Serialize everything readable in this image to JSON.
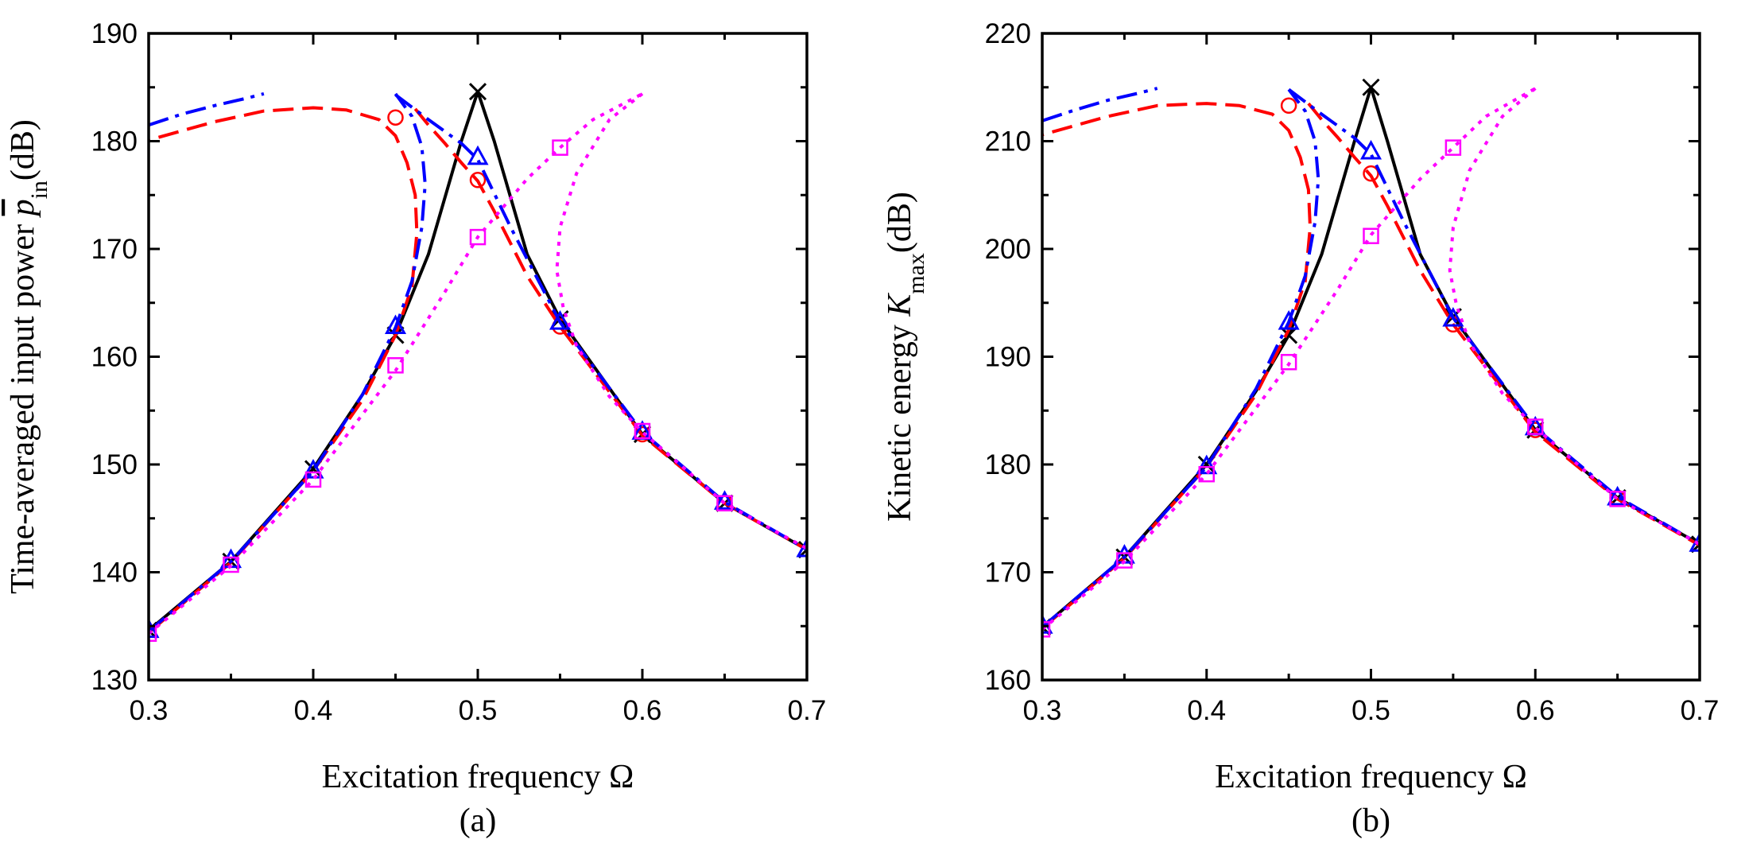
{
  "chart_data": [
    {
      "type": "line",
      "panel_label": "(a)",
      "xlabel": "Excitation frequency Ω",
      "ylabel": {
        "prefix": "Time-averaged input power ",
        "symbol": "p",
        "overline": true,
        "subscript": "in",
        "suffix": "(dB)"
      },
      "xlim": [
        0.3,
        0.7
      ],
      "ylim": [
        130,
        190
      ],
      "xticks": [
        "0.3",
        "0.4",
        "0.5",
        "0.6",
        "0.7"
      ],
      "xticks_minor": [
        0.35,
        0.45,
        0.55,
        0.65
      ],
      "yticks": [
        "130",
        "140",
        "150",
        "160",
        "170",
        "180",
        "190"
      ],
      "yticks_minor": [
        135,
        145,
        155,
        165,
        175,
        185
      ],
      "grid": false,
      "series": [
        {
          "color": "#000000",
          "dash": "solid",
          "marker": "x",
          "x": [
            0.3,
            0.35,
            0.4,
            0.43,
            0.45,
            0.47,
            0.49,
            0.5,
            0.51,
            0.53,
            0.55,
            0.6,
            0.65,
            0.7
          ],
          "y": [
            134.6,
            141.0,
            149.6,
            156.5,
            162.0,
            169.5,
            180.0,
            184.6,
            180.0,
            169.5,
            163.5,
            152.8,
            146.4,
            142.1
          ],
          "marker_x": [
            0.3,
            0.35,
            0.4,
            0.45,
            0.5,
            0.55,
            0.6,
            0.65,
            0.7
          ],
          "marker_y": [
            134.6,
            141.0,
            149.6,
            162.0,
            184.6,
            163.5,
            152.8,
            146.4,
            142.1
          ]
        },
        {
          "color": "#ff0000",
          "dash": "dashed",
          "marker": "circle",
          "x": [
            0.3,
            0.35,
            0.4,
            0.43,
            0.45,
            0.46,
            0.463,
            0.462,
            0.457,
            0.45,
            0.44,
            0.42,
            0.4,
            0.37,
            0.34,
            0.3
          ],
          "y": [
            134.4,
            140.9,
            149.4,
            156.0,
            162.0,
            166.5,
            171.5,
            175.0,
            178.0,
            180.5,
            182.0,
            182.9,
            183.1,
            182.8,
            181.8,
            180.1
          ],
          "x2": [
            0.462,
            0.47,
            0.48,
            0.49,
            0.5,
            0.51,
            0.53,
            0.55,
            0.6,
            0.65,
            0.7
          ],
          "y2": [
            183.0,
            181.5,
            179.8,
            178.0,
            176.3,
            173.5,
            167.5,
            162.8,
            152.7,
            146.4,
            142.1
          ],
          "marker_x": [
            0.45,
            0.5,
            0.55,
            0.6,
            0.65
          ],
          "marker_y": [
            182.2,
            176.4,
            162.8,
            152.8,
            146.4
          ]
        },
        {
          "color": "#0000ff",
          "dash": "dashdot",
          "marker": "triangle",
          "x": [
            0.3,
            0.35,
            0.4,
            0.43,
            0.45,
            0.46,
            0.466,
            0.468,
            0.466,
            0.46,
            0.45
          ],
          "y": [
            134.5,
            141.0,
            149.4,
            156.5,
            162.7,
            167.0,
            172.0,
            176.0,
            179.5,
            182.3,
            184.4
          ],
          "x2": [
            0.3,
            0.32,
            0.34,
            0.36,
            0.37
          ],
          "y2": [
            181.5,
            182.5,
            183.3,
            184.0,
            184.4
          ],
          "x3": [
            0.45,
            0.47,
            0.49,
            0.5,
            0.52,
            0.55,
            0.6,
            0.65,
            0.7
          ],
          "y3": [
            184.3,
            182.0,
            179.8,
            178.3,
            172.0,
            163.2,
            153.0,
            146.5,
            142.1
          ],
          "marker_x": [
            0.3,
            0.35,
            0.4,
            0.45,
            0.5,
            0.55,
            0.6,
            0.65,
            0.7
          ],
          "marker_y": [
            134.6,
            141.1,
            149.4,
            162.8,
            178.5,
            163.2,
            153.0,
            146.5,
            142.1
          ]
        },
        {
          "color": "#ff00ff",
          "dash": "dotted",
          "marker": "square",
          "x": [
            0.3,
            0.35,
            0.4,
            0.45,
            0.48,
            0.5,
            0.53,
            0.55,
            0.57,
            0.6
          ],
          "y": [
            134.3,
            140.6,
            148.6,
            158.7,
            166.0,
            171.1,
            176.5,
            179.4,
            182.0,
            184.4
          ],
          "x2": [
            0.6,
            0.58,
            0.56,
            0.55,
            0.548,
            0.552,
            0.56,
            0.58,
            0.6,
            0.65,
            0.7
          ],
          "y2": [
            184.4,
            182.0,
            177.0,
            172.0,
            168.0,
            164.5,
            161.0,
            156.3,
            153.0,
            146.4,
            142.2
          ],
          "marker_x": [
            0.3,
            0.35,
            0.4,
            0.45,
            0.5,
            0.55,
            0.6,
            0.65
          ],
          "marker_y": [
            134.3,
            140.7,
            148.6,
            159.2,
            171.1,
            179.4,
            153.1,
            146.4
          ]
        }
      ]
    },
    {
      "type": "line",
      "panel_label": "(b)",
      "xlabel": "Excitation frequency Ω",
      "ylabel": {
        "prefix": "Kinetic energy ",
        "symbol": "K",
        "overline": false,
        "subscript": "max",
        "suffix": "(dB)"
      },
      "xlim": [
        0.3,
        0.7
      ],
      "ylim": [
        160,
        220
      ],
      "xticks": [
        "0.3",
        "0.4",
        "0.5",
        "0.6",
        "0.7"
      ],
      "xticks_minor": [
        0.35,
        0.45,
        0.55,
        0.65
      ],
      "yticks": [
        "160",
        "170",
        "180",
        "190",
        "200",
        "210",
        "220"
      ],
      "yticks_minor": [
        165,
        175,
        185,
        195,
        205,
        215
      ],
      "grid": false,
      "series": [
        {
          "color": "#000000",
          "dash": "solid",
          "marker": "x",
          "x": [
            0.3,
            0.35,
            0.4,
            0.43,
            0.45,
            0.47,
            0.49,
            0.5,
            0.51,
            0.53,
            0.55,
            0.6,
            0.65,
            0.7
          ],
          "y": [
            164.9,
            171.4,
            180.0,
            186.8,
            192.0,
            199.5,
            210.0,
            215.0,
            210.0,
            199.5,
            193.7,
            183.2,
            176.9,
            172.6
          ],
          "marker_x": [
            0.3,
            0.35,
            0.4,
            0.45,
            0.5,
            0.55,
            0.6,
            0.65,
            0.7
          ],
          "marker_y": [
            164.9,
            171.4,
            180.0,
            192.0,
            215.0,
            193.7,
            183.2,
            176.9,
            172.6
          ]
        },
        {
          "color": "#ff0000",
          "dash": "dashed",
          "marker": "circle",
          "x": [
            0.3,
            0.35,
            0.4,
            0.43,
            0.45,
            0.46,
            0.463,
            0.462,
            0.457,
            0.45,
            0.44,
            0.42,
            0.4,
            0.37,
            0.34,
            0.3
          ],
          "y": [
            164.8,
            171.3,
            179.8,
            186.5,
            192.5,
            197.0,
            202.0,
            205.5,
            208.5,
            211.0,
            212.5,
            213.3,
            213.5,
            213.3,
            212.3,
            210.6
          ],
          "x2": [
            0.462,
            0.47,
            0.48,
            0.49,
            0.5,
            0.51,
            0.53,
            0.55,
            0.6,
            0.65,
            0.7
          ],
          "y2": [
            213.5,
            212.0,
            210.3,
            208.5,
            206.8,
            204.0,
            198.0,
            193.0,
            183.0,
            176.8,
            172.5
          ],
          "marker_x": [
            0.45,
            0.5,
            0.55,
            0.6,
            0.65
          ],
          "marker_y": [
            213.3,
            207.0,
            193.0,
            183.2,
            176.9
          ]
        },
        {
          "color": "#0000ff",
          "dash": "dashdot",
          "marker": "triangle",
          "x": [
            0.3,
            0.35,
            0.4,
            0.43,
            0.45,
            0.46,
            0.466,
            0.468,
            0.466,
            0.46,
            0.45
          ],
          "y": [
            164.9,
            171.4,
            179.8,
            187.0,
            193.2,
            197.5,
            202.5,
            206.5,
            210.0,
            212.8,
            214.8
          ],
          "x2": [
            0.3,
            0.32,
            0.34,
            0.36,
            0.37
          ],
          "y2": [
            211.9,
            212.9,
            213.8,
            214.5,
            214.9
          ],
          "x3": [
            0.45,
            0.47,
            0.49,
            0.5,
            0.52,
            0.55,
            0.6,
            0.65,
            0.7
          ],
          "y3": [
            214.8,
            212.5,
            210.3,
            208.8,
            202.5,
            193.6,
            183.4,
            177.0,
            172.6
          ],
          "marker_x": [
            0.3,
            0.35,
            0.4,
            0.45,
            0.5,
            0.55,
            0.6,
            0.65,
            0.7
          ],
          "marker_y": [
            165.0,
            171.5,
            179.8,
            193.2,
            209.0,
            193.5,
            183.4,
            176.9,
            172.6
          ]
        },
        {
          "color": "#ff00ff",
          "dash": "dotted",
          "marker": "square",
          "x": [
            0.3,
            0.35,
            0.4,
            0.45,
            0.48,
            0.5,
            0.53,
            0.55,
            0.57,
            0.6
          ],
          "y": [
            164.7,
            171.0,
            179.1,
            189.3,
            196.3,
            201.3,
            206.5,
            209.4,
            212.3,
            214.9
          ],
          "x2": [
            0.6,
            0.58,
            0.56,
            0.55,
            0.548,
            0.552,
            0.56,
            0.58,
            0.6,
            0.65,
            0.7
          ],
          "y2": [
            214.9,
            212.3,
            207.3,
            202.0,
            198.0,
            194.8,
            191.3,
            186.6,
            183.4,
            176.8,
            172.6
          ],
          "marker_x": [
            0.3,
            0.35,
            0.4,
            0.45,
            0.5,
            0.55,
            0.6,
            0.65
          ],
          "marker_y": [
            164.7,
            171.1,
            179.1,
            189.5,
            201.2,
            209.4,
            183.5,
            176.8
          ]
        }
      ]
    }
  ]
}
